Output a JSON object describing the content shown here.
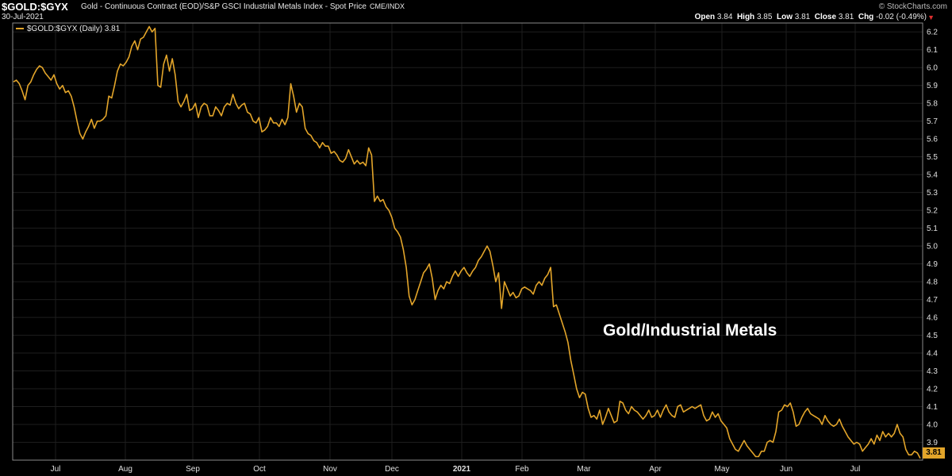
{
  "header": {
    "symbol": "$GOLD:$GYX",
    "description": "Gold - Continuous Contract (EOD)/S&P GSCI Industrial Metals Index - Spot Price",
    "exchange": "CME/INDX",
    "date": "30-Jul-2021",
    "brand": "© StockCharts.com",
    "open_label": "Open",
    "open_value": "3.84",
    "high_label": "High",
    "high_value": "3.85",
    "low_label": "Low",
    "low_value": "3.81",
    "close_label": "Close",
    "close_value": "3.81",
    "chg_label": "Chg",
    "chg_value": "-0.02 (-0.49%)",
    "chg_direction_icon": "down-arrow-icon"
  },
  "legend": {
    "text": "$GOLD:$GYX (Daily) 3.81"
  },
  "annotation": "Gold/Industrial Metals",
  "last_value_badge": "3.81",
  "colors": {
    "background": "#000000",
    "line": "#e3a52a",
    "grid": "#1e1e1e",
    "down": "#e03030"
  },
  "chart_data": {
    "type": "line",
    "title": "",
    "xlabel": "",
    "ylabel": "",
    "ylim": [
      3.8,
      6.25
    ],
    "yticks": [
      3.9,
      4.0,
      4.1,
      4.2,
      4.3,
      4.4,
      4.5,
      4.6,
      4.7,
      4.8,
      4.9,
      5.0,
      5.1,
      5.2,
      5.3,
      5.4,
      5.5,
      5.6,
      5.7,
      5.8,
      5.9,
      6.0,
      6.1,
      6.2
    ],
    "xticks": [
      "Jul",
      "Aug",
      "Sep",
      "Oct",
      "Nov",
      "Dec",
      "2021",
      "Feb",
      "Mar",
      "Apr",
      "May",
      "Jun",
      "Jul"
    ],
    "grid": true,
    "legend_position": "top-left",
    "series": [
      {
        "name": "$GOLD:$GYX (Daily)",
        "values": [
          5.92,
          5.93,
          5.91,
          5.87,
          5.82,
          5.9,
          5.92,
          5.96,
          5.99,
          6.01,
          6.0,
          5.97,
          5.95,
          5.93,
          5.96,
          5.91,
          5.88,
          5.9,
          5.86,
          5.87,
          5.84,
          5.78,
          5.7,
          5.63,
          5.6,
          5.64,
          5.67,
          5.71,
          5.66,
          5.7,
          5.7,
          5.71,
          5.73,
          5.84,
          5.83,
          5.9,
          5.98,
          6.02,
          6.01,
          6.03,
          6.06,
          6.12,
          6.15,
          6.1,
          6.16,
          6.17,
          6.2,
          6.23,
          6.2,
          6.22,
          5.9,
          5.89,
          6.02,
          6.07,
          5.98,
          6.05,
          5.96,
          5.81,
          5.78,
          5.81,
          5.85,
          5.76,
          5.77,
          5.8,
          5.72,
          5.78,
          5.8,
          5.79,
          5.73,
          5.73,
          5.78,
          5.76,
          5.73,
          5.78,
          5.8,
          5.79,
          5.85,
          5.8,
          5.77,
          5.79,
          5.8,
          5.75,
          5.74,
          5.7,
          5.69,
          5.72,
          5.64,
          5.65,
          5.67,
          5.72,
          5.69,
          5.69,
          5.67,
          5.71,
          5.68,
          5.72,
          5.91,
          5.84,
          5.75,
          5.8,
          5.78,
          5.66,
          5.63,
          5.62,
          5.59,
          5.58,
          5.55,
          5.58,
          5.56,
          5.56,
          5.52,
          5.53,
          5.51,
          5.48,
          5.47,
          5.49,
          5.54,
          5.5,
          5.46,
          5.48,
          5.46,
          5.47,
          5.45,
          5.55,
          5.51,
          5.25,
          5.28,
          5.25,
          5.26,
          5.22,
          5.2,
          5.16,
          5.1,
          5.08,
          5.05,
          4.98,
          4.88,
          4.72,
          4.67,
          4.7,
          4.75,
          4.8,
          4.85,
          4.87,
          4.9,
          4.82,
          4.7,
          4.75,
          4.78,
          4.76,
          4.8,
          4.79,
          4.83,
          4.86,
          4.83,
          4.86,
          4.88,
          4.85,
          4.83,
          4.86,
          4.88,
          4.92,
          4.94,
          4.97,
          5.0,
          4.97,
          4.89,
          4.8,
          4.85,
          4.65,
          4.8,
          4.76,
          4.72,
          4.74,
          4.71,
          4.72,
          4.76,
          4.77,
          4.76,
          4.75,
          4.73,
          4.78,
          4.8,
          4.78,
          4.82,
          4.84,
          4.88,
          4.66,
          4.67,
          4.62,
          4.57,
          4.52,
          4.46,
          4.36,
          4.28,
          4.2,
          4.15,
          4.18,
          4.17,
          4.09,
          4.04,
          4.05,
          4.03,
          4.08,
          4.0,
          4.04,
          4.09,
          4.05,
          4.01,
          4.02,
          4.13,
          4.12,
          4.08,
          4.06,
          4.1,
          4.08,
          4.07,
          4.05,
          4.03,
          4.05,
          4.08,
          4.04,
          4.05,
          4.08,
          4.04,
          4.08,
          4.11,
          4.07,
          4.05,
          4.04,
          4.1,
          4.11,
          4.07,
          4.08,
          4.09,
          4.1,
          4.09,
          4.1,
          4.11,
          4.05,
          4.02,
          4.03,
          4.07,
          4.04,
          4.06,
          4.02,
          4.0,
          3.98,
          3.92,
          3.89,
          3.86,
          3.85,
          3.88,
          3.91,
          3.88,
          3.86,
          3.84,
          3.82,
          3.82,
          3.85,
          3.85,
          3.9,
          3.91,
          3.9,
          3.96,
          4.07,
          4.08,
          4.11,
          4.1,
          4.12,
          4.07,
          3.99,
          4.0,
          4.04,
          4.07,
          4.09,
          4.06,
          4.05,
          4.04,
          4.03,
          4.0,
          4.05,
          4.02,
          4.0,
          3.99,
          4.0,
          4.03,
          3.99,
          3.96,
          3.93,
          3.91,
          3.89,
          3.9,
          3.89,
          3.85,
          3.87,
          3.89,
          3.92,
          3.89,
          3.94,
          3.91,
          3.96,
          3.93,
          3.95,
          3.93,
          3.95,
          4.0,
          3.95,
          3.93,
          3.86,
          3.83,
          3.83,
          3.85,
          3.84,
          3.81
        ]
      }
    ]
  }
}
